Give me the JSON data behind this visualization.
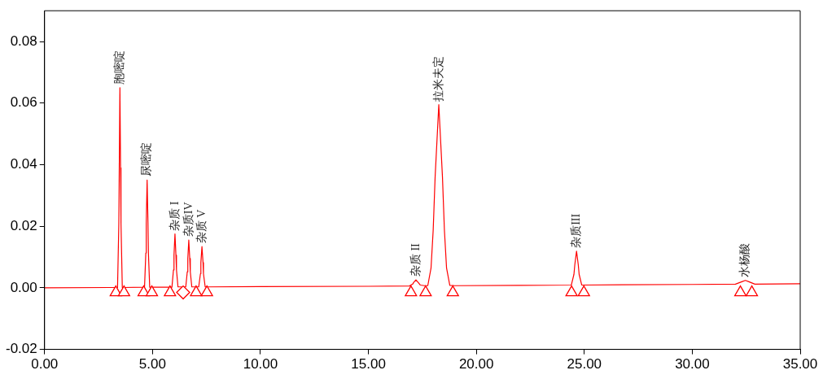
{
  "chart_data": {
    "type": "line",
    "xlim": [
      0,
      35
    ],
    "ylim": [
      -0.02,
      0.09
    ],
    "xticks": [
      {
        "value": 0,
        "label": "0.00"
      },
      {
        "value": 5,
        "label": "5.00"
      },
      {
        "value": 10,
        "label": "10.00"
      },
      {
        "value": 15,
        "label": "15.00"
      },
      {
        "value": 20,
        "label": "20.00"
      },
      {
        "value": 25,
        "label": "25.00"
      },
      {
        "value": 30,
        "label": "30.00"
      },
      {
        "value": 35,
        "label": "35.00"
      }
    ],
    "yticks": [
      {
        "value": -0.02,
        "label": "-0.02"
      },
      {
        "value": 0,
        "label": "0.00"
      },
      {
        "value": 0.02,
        "label": "0.02"
      },
      {
        "value": 0.04,
        "label": "0.04"
      },
      {
        "value": 0.06,
        "label": "0.06"
      },
      {
        "value": 0.08,
        "label": "0.08"
      }
    ],
    "grid": false,
    "legend": false,
    "marker": "none",
    "line_style": "solid",
    "series": [
      {
        "color": "#ff0000",
        "x": [
          0,
          3.0,
          3.38,
          3.44,
          3.46,
          3.49,
          3.52,
          3.54,
          3.6,
          4.63,
          4.69,
          4.71,
          4.75,
          4.79,
          4.81,
          4.87,
          5.9,
          5.97,
          5.995,
          6.04,
          6.085,
          6.11,
          6.18,
          6.54,
          6.61,
          6.635,
          6.68,
          6.725,
          6.75,
          6.82,
          7.14,
          7.22,
          7.24,
          7.29,
          7.34,
          7.36,
          7.44,
          10,
          15,
          16.9,
          17.05,
          17.1,
          17.2,
          17.3,
          17.4,
          17.6,
          17.75,
          17.9,
          18.0,
          18.09,
          18.26,
          18.43,
          18.52,
          18.62,
          18.77,
          19.0,
          22,
          24.4,
          24.52,
          24.56,
          24.64,
          24.72,
          24.76,
          24.88,
          30,
          32.0,
          32.3,
          32.46,
          32.62,
          32.9,
          35
        ],
        "values": [
          0,
          0.0001,
          0.0001,
          0.021,
          0.039,
          0.065,
          0.039,
          0.021,
          0.0001,
          0.0002,
          0.0113,
          0.021,
          0.035,
          0.021,
          0.0113,
          0.0002,
          0.0002,
          0.0058,
          0.0106,
          0.0175,
          0.0106,
          0.0058,
          0.0003,
          0.0003,
          0.0052,
          0.0095,
          0.0155,
          0.0095,
          0.0052,
          0.0003,
          0.0003,
          0.0046,
          0.0082,
          0.0134,
          0.0082,
          0.0046,
          0.0003,
          0.0004,
          0.0005,
          0.0006,
          0.0012,
          0.0018,
          0.0026,
          0.0018,
          0.0009,
          0.0007,
          0.0007,
          0.0064,
          0.0187,
          0.036,
          0.0595,
          0.036,
          0.0187,
          0.0064,
          0.0008,
          0.0007,
          0.0008,
          0.0009,
          0.0044,
          0.0075,
          0.0119,
          0.0075,
          0.0044,
          0.0009,
          0.0011,
          0.0012,
          0.002,
          0.0024,
          0.002,
          0.0012,
          0.0013
        ]
      },
      {
        "type": "scatter",
        "color": "#ff0000",
        "marker": "triangle",
        "x": [
          3.3,
          3.68,
          4.59,
          4.97,
          5.81,
          7.02,
          7.52,
          16.97,
          17.65,
          18.91,
          24.41,
          24.98,
          32.23,
          32.76
        ],
        "values": [
          -0.0015,
          -0.0015,
          -0.0015,
          -0.0015,
          -0.0015,
          -0.0015,
          -0.0015,
          -0.0015,
          -0.0015,
          -0.0015,
          -0.0015,
          -0.0015,
          -0.0015,
          -0.0015
        ]
      },
      {
        "type": "scatter",
        "color": "#ff0000",
        "marker": "diamond",
        "x": [
          6.42
        ],
        "values": [
          -0.0015
        ]
      }
    ],
    "annotations": [
      {
        "text": "胞嘧啶",
        "x": 3.49,
        "y": 0.065
      },
      {
        "text": "尿嘧啶",
        "x": 4.75,
        "y": 0.035
      },
      {
        "text": "杂质 I",
        "x": 6.04,
        "y": 0.0175
      },
      {
        "text": "杂质IV",
        "x": 6.68,
        "y": 0.0155
      },
      {
        "text": "杂质 V",
        "x": 7.29,
        "y": 0.0134
      },
      {
        "text": "杂质 II",
        "x": 17.2,
        "y": 0.0026
      },
      {
        "text": "拉米夫定",
        "x": 18.26,
        "y": 0.0595
      },
      {
        "text": "杂质III",
        "x": 24.64,
        "y": 0.0119
      },
      {
        "text": "水杨酸",
        "x": 32.46,
        "y": 0.0024
      }
    ]
  }
}
